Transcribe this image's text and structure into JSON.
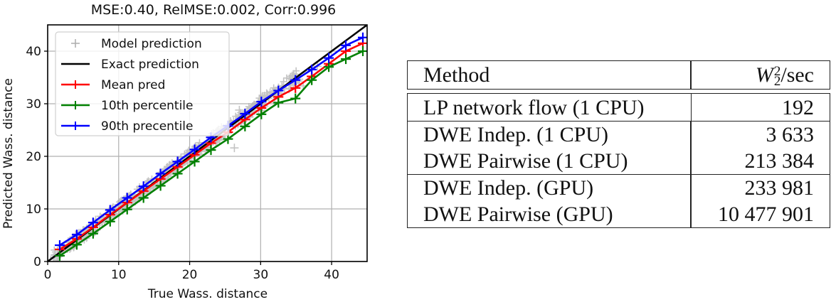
{
  "chart_data": {
    "type": "scatter",
    "title": "MSE:0.40, RelMSE:0.002, Corr:0.996",
    "xlabel": "True Wass. distance",
    "ylabel": "Predicted Wass. distance",
    "xlim": [
      0,
      45
    ],
    "ylim": [
      0,
      45
    ],
    "xticks": [
      0,
      10,
      20,
      30,
      40
    ],
    "yticks": [
      0,
      10,
      20,
      30,
      40
    ],
    "grid": true,
    "legend_position": "upper left",
    "legend": [
      "Model prediction",
      "Exact prediction",
      "Mean pred",
      "10th percentile",
      "90th precentile"
    ],
    "series": [
      {
        "name": "Exact prediction",
        "type": "line",
        "color": "#000000",
        "x": [
          0,
          45
        ],
        "y": [
          0,
          45
        ]
      },
      {
        "name": "Mean pred",
        "type": "line",
        "marker": "+",
        "color": "#ff0000",
        "x": [
          1.7,
          4.1,
          6.4,
          8.8,
          11.2,
          13.5,
          15.9,
          18.3,
          20.7,
          23.0,
          25.4,
          27.8,
          30.1,
          32.5,
          34.9,
          37.2,
          39.6,
          42.0,
          44.4
        ],
        "y": [
          2.3,
          4.3,
          6.5,
          8.9,
          11.2,
          13.4,
          15.7,
          18.0,
          20.3,
          22.5,
          24.6,
          27.0,
          29.2,
          31.3,
          33.0,
          35.2,
          37.6,
          40.0,
          41.5
        ]
      },
      {
        "name": "10th percentile",
        "type": "line",
        "marker": "+",
        "color": "#008000",
        "x": [
          1.7,
          4.1,
          6.4,
          8.8,
          11.2,
          13.5,
          15.9,
          18.3,
          20.7,
          23.0,
          25.4,
          27.8,
          30.1,
          32.5,
          34.9,
          37.2,
          39.6,
          42.0,
          44.4
        ],
        "y": [
          1.1,
          3.2,
          5.3,
          7.6,
          9.9,
          12.1,
          14.4,
          16.7,
          19.0,
          21.2,
          23.3,
          25.7,
          28.0,
          30.2,
          31.0,
          34.5,
          37.0,
          38.5,
          40.0
        ]
      },
      {
        "name": "90th precentile",
        "type": "line",
        "marker": "+",
        "color": "#0000ff",
        "x": [
          1.7,
          4.1,
          6.4,
          8.8,
          11.2,
          13.5,
          15.9,
          18.3,
          20.7,
          23.0,
          25.4,
          27.8,
          30.1,
          32.5,
          34.9,
          37.2,
          39.6,
          42.0,
          44.4
        ],
        "y": [
          3.1,
          5.1,
          7.4,
          9.8,
          12.1,
          14.3,
          16.7,
          19.0,
          21.3,
          23.6,
          25.8,
          28.1,
          30.4,
          32.5,
          34.5,
          36.5,
          38.7,
          41.1,
          42.6
        ]
      },
      {
        "name": "Model prediction",
        "type": "scatter",
        "marker": "+",
        "color": "#b0b0b0",
        "x": [
          1,
          2,
          3,
          4,
          5,
          6,
          7,
          8,
          9,
          10,
          11,
          12,
          13,
          14,
          15,
          16,
          17,
          18,
          19,
          20,
          21,
          22,
          23,
          24,
          25,
          26.3,
          27,
          28,
          29,
          30,
          31,
          32,
          33,
          34,
          35,
          36,
          38
        ],
        "y": [
          1.2,
          1.8,
          3.2,
          3.8,
          5.2,
          5.7,
          7.3,
          7.6,
          9.2,
          9.8,
          11.1,
          11.6,
          13.3,
          13.7,
          15.2,
          15.6,
          17.3,
          17.5,
          19.1,
          19.7,
          21.0,
          21.8,
          23.0,
          23.4,
          25.1,
          21.6,
          28.8,
          27.3,
          29.5,
          28.7,
          31.7,
          30.3,
          33.2,
          32.8,
          35.6,
          33.4,
          37.1
        ]
      }
    ]
  },
  "table": {
    "headers": [
      "Method",
      "W",
      "2",
      "2",
      "/sec"
    ],
    "header_method": "Method",
    "header_metric_base": "W",
    "header_metric_sup": "2",
    "header_metric_sub": "2",
    "header_metric_suffix": "/sec",
    "groups": [
      [
        {
          "method": "LP network flow (1 CPU)",
          "value": "192"
        }
      ],
      [
        {
          "method": "DWE Indep. (1 CPU)",
          "value": "3 633"
        },
        {
          "method": "DWE Pairwise (1 CPU)",
          "value": "213 384"
        }
      ],
      [
        {
          "method": "DWE Indep. (GPU)",
          "value": "233 981"
        },
        {
          "method": "DWE Pairwise (GPU)",
          "value": "10 477 901"
        }
      ]
    ]
  },
  "colors": {
    "mean": "#ff0000",
    "p10": "#008000",
    "p90": "#0000ff",
    "exact": "#000000",
    "scatter": "#b0b0b0",
    "grid": "#b0b0b0"
  }
}
